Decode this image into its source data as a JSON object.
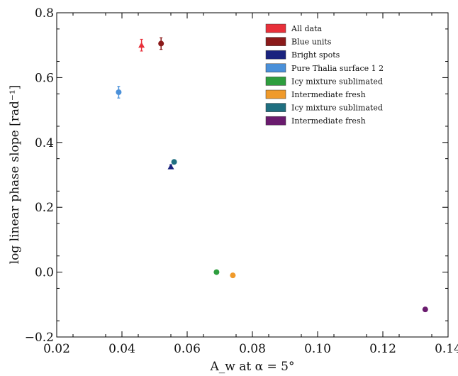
{
  "chart_data": {
    "type": "scatter",
    "xlabel": "A_w at α = 5°",
    "ylabel": "log linear phase slope [rad⁻¹]",
    "xlim": [
      0.02,
      0.14
    ],
    "ylim": [
      -0.2,
      0.8
    ],
    "x_ticks": [
      "0.02",
      "0.04",
      "0.06",
      "0.08",
      "0.10",
      "0.12",
      "0.14"
    ],
    "y_ticks": [
      "−0.2",
      "0.0",
      "0.2",
      "0.4",
      "0.6",
      "0.8"
    ],
    "grid": false,
    "legend_position": "top-right",
    "series": [
      {
        "name": "All data",
        "color": "#e8303a",
        "marker": "triangle",
        "points": [
          {
            "x": 0.046,
            "y": 0.7,
            "err": 0.018
          }
        ]
      },
      {
        "name": "Blue units",
        "color": "#8b1a1a",
        "marker": "circle",
        "points": [
          {
            "x": 0.052,
            "y": 0.705,
            "err": 0.018
          }
        ]
      },
      {
        "name": "Bright spots",
        "color": "#1a237e",
        "marker": "triangle",
        "points": [
          {
            "x": 0.055,
            "y": 0.325,
            "err": 0.006
          }
        ]
      },
      {
        "name": "Pure Thalia surface 1 2",
        "color": "#4a90d9",
        "marker": "circle",
        "points": [
          {
            "x": 0.039,
            "y": 0.555,
            "err": 0.018
          }
        ]
      },
      {
        "name": "Icy mixture sublimated",
        "color": "#2e9e3e",
        "marker": "circle",
        "points": [
          {
            "x": 0.069,
            "y": 0.0,
            "err": 0.004
          }
        ]
      },
      {
        "name": "Intermediate fresh",
        "color": "#f09a2a",
        "marker": "circle",
        "points": [
          {
            "x": 0.074,
            "y": -0.01,
            "err": 0.006
          }
        ]
      },
      {
        "name": "Icy mixture sublimated",
        "color": "#1f6f80",
        "marker": "circle",
        "points": [
          {
            "x": 0.056,
            "y": 0.34,
            "err": 0.006
          }
        ]
      },
      {
        "name": "Intermediate fresh",
        "color": "#6a1b6e",
        "marker": "circle",
        "points": [
          {
            "x": 0.133,
            "y": -0.115,
            "err": 0.004
          }
        ]
      }
    ]
  }
}
